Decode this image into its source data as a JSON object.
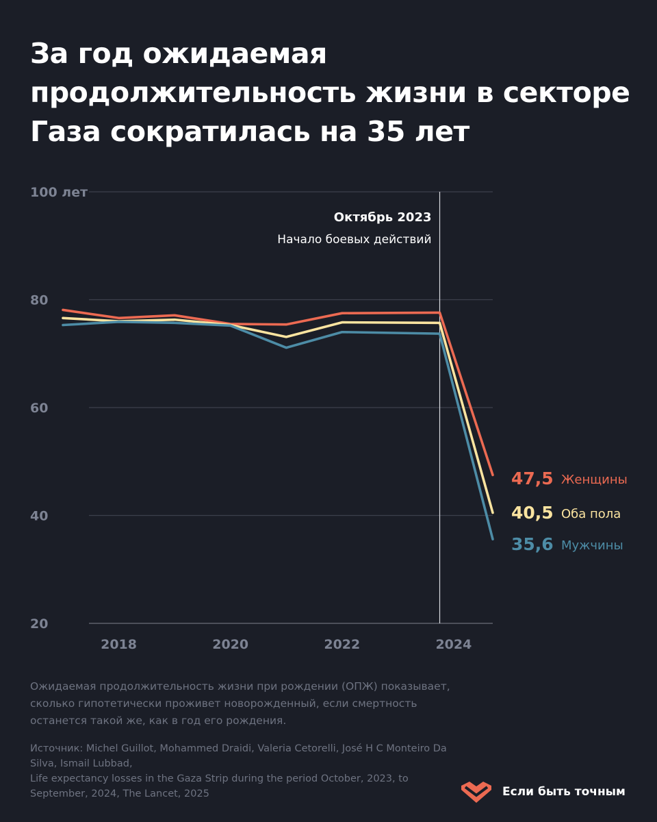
{
  "title": "За год ожидаемая продолжительность жизни в секторе Газа сократилась на 35 лет",
  "chart_data": {
    "type": "line",
    "x": [
      2017,
      2018,
      2019,
      2020,
      2021,
      2022,
      2023.75,
      2024.7
    ],
    "series": [
      {
        "name": "Женщины",
        "color": "#ec6a52",
        "values": [
          78.1,
          76.6,
          77.1,
          75.5,
          75.4,
          77.5,
          77.6,
          47.5
        ],
        "end_label": "47,5"
      },
      {
        "name": "Оба пола",
        "color": "#fbe4a0",
        "values": [
          76.6,
          76.0,
          76.3,
          75.3,
          73.1,
          75.8,
          75.7,
          40.5
        ],
        "end_label": "40,5"
      },
      {
        "name": "Мужчины",
        "color": "#4d8ca6",
        "values": [
          75.3,
          75.9,
          75.7,
          75.2,
          71.1,
          74.0,
          73.7,
          35.6
        ],
        "end_label": "35,6"
      }
    ],
    "y_ticks": [
      {
        "value": 100,
        "label": "100 лет"
      },
      {
        "value": 80,
        "label": "80"
      },
      {
        "value": 60,
        "label": "60"
      },
      {
        "value": 40,
        "label": "40"
      },
      {
        "value": 20,
        "label": "20"
      }
    ],
    "x_ticks": [
      {
        "value": 2018,
        "label": "2018"
      },
      {
        "value": 2020,
        "label": "2020"
      },
      {
        "value": 2022,
        "label": "2022"
      },
      {
        "value": 2024,
        "label": "2024"
      }
    ],
    "ylim": [
      20,
      100
    ],
    "xlim": [
      2017,
      2024.7
    ],
    "grid": true,
    "annotation": {
      "x": 2023.75,
      "title": "Октябрь 2023",
      "subtitle": "Начало боевых действий"
    }
  },
  "note": "Ожидаемая продолжительность жизни при рождении (ОПЖ) показывает, сколько гипотетически проживет новорожденный, если смертность останется такой же, как в год его рождения.",
  "source": {
    "line1": "Источник: Michel Guillot, Mohammed Draidi, Valeria Cetorelli, José H C Monteiro Da Silva, Ismail Lubbad,",
    "line2": "Life expectancy losses in the Gaza Strip during the period October, 2023, to September, 2024, The Lancet, 2025"
  },
  "brand": {
    "name": "Если быть точным",
    "icon": "heart-logo-icon",
    "color": "#ec6a52"
  }
}
